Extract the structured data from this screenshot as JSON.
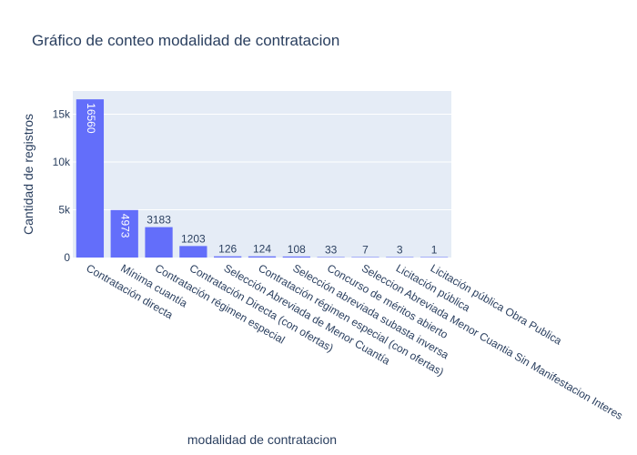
{
  "colors": {
    "plot_background": "#e5ecf6",
    "bar": "#636efa",
    "grid": "#ffffff",
    "text": "#2a3f5f"
  },
  "chart_data": {
    "type": "bar",
    "title": "Gráfico de conteo modalidad de contratacion",
    "xlabel": "modalidad de contratacion",
    "ylabel": "Cantidad de registros",
    "categories": [
      "Contratación directa",
      "Mínima cuantía",
      "Contratación régimen especial",
      "Contratación Directa (con ofertas)",
      "Selección Abreviada de Menor Cuantía",
      "Contratación régimen especial (con ofertas)",
      "Selección abreviada subasta inversa",
      "Concurso de méritos abierto",
      "Seleccion Abreviada Menor Cuantia Sin Manifestacion Interes",
      "Licitación pública",
      "Licitación pública Obra Publica"
    ],
    "values": [
      16560,
      4973,
      3183,
      1203,
      126,
      124,
      108,
      33,
      7,
      3,
      1
    ],
    "data_labels": [
      "16560",
      "4973",
      "3183",
      "1203",
      "126",
      "124",
      "108",
      "33",
      "7",
      "3",
      "1"
    ],
    "yticks": [
      0,
      5000,
      10000,
      15000
    ],
    "ytick_labels": [
      "0",
      "5k",
      "10k",
      "15k"
    ],
    "ylim": [
      0,
      17432
    ],
    "grid": true,
    "legend": false
  }
}
